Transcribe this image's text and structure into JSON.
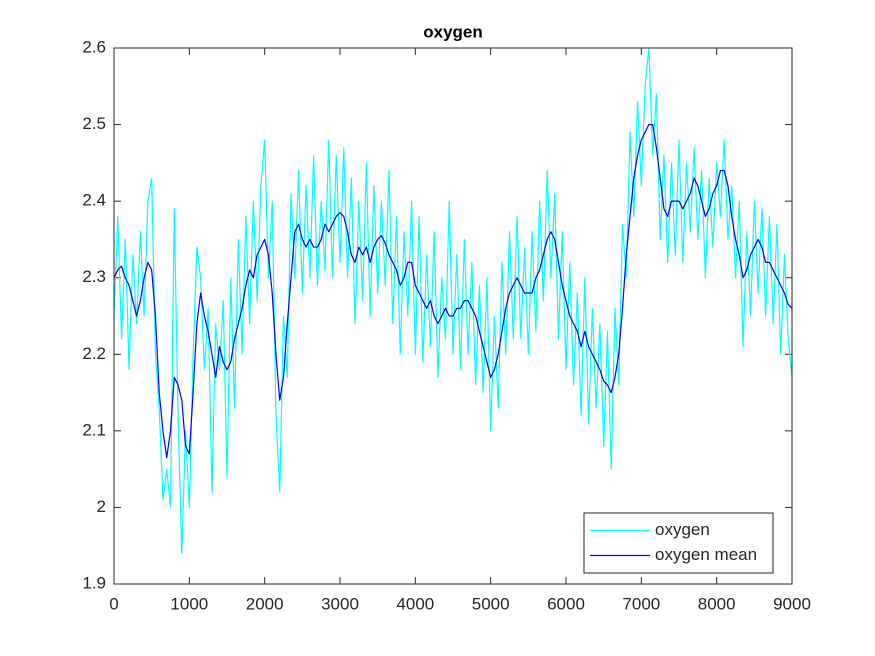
{
  "chart_data": {
    "type": "line",
    "title": "oxygen",
    "x": [
      0,
      50,
      100,
      150,
      200,
      250,
      300,
      350,
      400,
      450,
      500,
      550,
      600,
      650,
      700,
      750,
      800,
      850,
      900,
      950,
      1000,
      1050,
      1100,
      1150,
      1200,
      1250,
      1300,
      1350,
      1400,
      1450,
      1500,
      1550,
      1600,
      1650,
      1700,
      1750,
      1800,
      1850,
      1900,
      1950,
      2000,
      2050,
      2100,
      2150,
      2200,
      2250,
      2300,
      2350,
      2400,
      2450,
      2500,
      2550,
      2600,
      2650,
      2700,
      2750,
      2800,
      2850,
      2900,
      2950,
      3000,
      3050,
      3100,
      3150,
      3200,
      3250,
      3300,
      3350,
      3400,
      3450,
      3500,
      3550,
      3600,
      3650,
      3700,
      3750,
      3800,
      3850,
      3900,
      3950,
      4000,
      4050,
      4100,
      4150,
      4200,
      4250,
      4300,
      4350,
      4400,
      4450,
      4500,
      4550,
      4600,
      4650,
      4700,
      4750,
      4800,
      4850,
      4900,
      4950,
      5000,
      5050,
      5100,
      5150,
      5200,
      5250,
      5300,
      5350,
      5400,
      5450,
      5500,
      5550,
      5600,
      5650,
      5700,
      5750,
      5800,
      5850,
      5900,
      5950,
      6000,
      6050,
      6100,
      6150,
      6200,
      6250,
      6300,
      6350,
      6400,
      6450,
      6500,
      6550,
      6600,
      6650,
      6700,
      6750,
      6800,
      6850,
      6900,
      6950,
      7000,
      7050,
      7100,
      7150,
      7200,
      7250,
      7300,
      7350,
      7400,
      7450,
      7500,
      7550,
      7600,
      7650,
      7700,
      7750,
      7800,
      7850,
      7900,
      7950,
      8000,
      8050,
      8100,
      8150,
      8200,
      8250,
      8300,
      8350,
      8400,
      8450,
      8500,
      8550,
      8600,
      8650,
      8700,
      8750,
      8800,
      8850,
      8900,
      8950,
      9000
    ],
    "series": [
      {
        "name": "oxygen",
        "color": "#00ffff",
        "values": [
          2.25,
          2.38,
          2.22,
          2.35,
          2.18,
          2.33,
          2.24,
          2.36,
          2.25,
          2.4,
          2.43,
          2.2,
          2.13,
          2.01,
          2.05,
          2.0,
          2.39,
          2.12,
          1.94,
          2.1,
          2.0,
          2.2,
          2.34,
          2.3,
          2.18,
          2.26,
          2.02,
          2.24,
          2.18,
          2.27,
          2.04,
          2.3,
          2.13,
          2.35,
          2.2,
          2.38,
          2.24,
          2.4,
          2.27,
          2.42,
          2.48,
          2.3,
          2.4,
          2.12,
          2.02,
          2.25,
          2.17,
          2.41,
          2.3,
          2.44,
          2.28,
          2.42,
          2.3,
          2.46,
          2.29,
          2.4,
          2.31,
          2.48,
          2.3,
          2.46,
          2.32,
          2.47,
          2.3,
          2.43,
          2.24,
          2.4,
          2.27,
          2.45,
          2.25,
          2.42,
          2.28,
          2.4,
          2.29,
          2.44,
          2.24,
          2.38,
          2.2,
          2.36,
          2.25,
          2.4,
          2.2,
          2.38,
          2.19,
          2.33,
          2.21,
          2.36,
          2.17,
          2.3,
          2.22,
          2.4,
          2.2,
          2.33,
          2.18,
          2.35,
          2.2,
          2.32,
          2.16,
          2.29,
          2.15,
          2.3,
          2.1,
          2.25,
          2.13,
          2.32,
          2.2,
          2.36,
          2.22,
          2.38,
          2.22,
          2.34,
          2.2,
          2.36,
          2.23,
          2.4,
          2.27,
          2.44,
          2.3,
          2.41,
          2.22,
          2.36,
          2.18,
          2.32,
          2.16,
          2.28,
          2.12,
          2.3,
          2.11,
          2.26,
          2.13,
          2.24,
          2.08,
          2.23,
          2.05,
          2.26,
          2.16,
          2.37,
          2.3,
          2.49,
          2.38,
          2.53,
          2.42,
          2.55,
          2.6,
          2.46,
          2.54,
          2.35,
          2.46,
          2.32,
          2.45,
          2.33,
          2.48,
          2.32,
          2.45,
          2.36,
          2.47,
          2.35,
          2.44,
          2.3,
          2.43,
          2.34,
          2.45,
          2.38,
          2.48,
          2.35,
          2.42,
          2.3,
          2.4,
          2.21,
          2.36,
          2.25,
          2.4,
          2.28,
          2.39,
          2.25,
          2.38,
          2.24,
          2.37,
          2.2,
          2.33,
          2.22,
          2.17
        ]
      },
      {
        "name": "oxygen mean",
        "color": "#0000ff",
        "values": [
          2.3,
          2.31,
          2.315,
          2.3,
          2.29,
          2.27,
          2.25,
          2.27,
          2.3,
          2.32,
          2.31,
          2.25,
          2.15,
          2.1,
          2.065,
          2.1,
          2.17,
          2.16,
          2.14,
          2.08,
          2.07,
          2.15,
          2.24,
          2.28,
          2.25,
          2.23,
          2.2,
          2.17,
          2.21,
          2.19,
          2.18,
          2.19,
          2.22,
          2.24,
          2.26,
          2.29,
          2.31,
          2.3,
          2.33,
          2.34,
          2.35,
          2.33,
          2.28,
          2.2,
          2.14,
          2.17,
          2.24,
          2.3,
          2.36,
          2.37,
          2.35,
          2.34,
          2.35,
          2.34,
          2.34,
          2.35,
          2.37,
          2.36,
          2.37,
          2.38,
          2.385,
          2.38,
          2.36,
          2.33,
          2.32,
          2.34,
          2.33,
          2.34,
          2.32,
          2.34,
          2.35,
          2.355,
          2.345,
          2.33,
          2.32,
          2.31,
          2.29,
          2.3,
          2.32,
          2.32,
          2.29,
          2.28,
          2.27,
          2.26,
          2.27,
          2.25,
          2.24,
          2.25,
          2.26,
          2.25,
          2.25,
          2.26,
          2.26,
          2.27,
          2.27,
          2.26,
          2.25,
          2.23,
          2.21,
          2.19,
          2.17,
          2.18,
          2.2,
          2.23,
          2.26,
          2.28,
          2.29,
          2.3,
          2.29,
          2.28,
          2.28,
          2.28,
          2.3,
          2.31,
          2.33,
          2.35,
          2.36,
          2.35,
          2.32,
          2.29,
          2.27,
          2.25,
          2.24,
          2.23,
          2.21,
          2.23,
          2.21,
          2.2,
          2.19,
          2.18,
          2.165,
          2.16,
          2.15,
          2.17,
          2.2,
          2.26,
          2.33,
          2.38,
          2.43,
          2.46,
          2.48,
          2.49,
          2.5,
          2.5,
          2.47,
          2.43,
          2.39,
          2.38,
          2.4,
          2.4,
          2.4,
          2.39,
          2.4,
          2.41,
          2.43,
          2.42,
          2.4,
          2.38,
          2.39,
          2.41,
          2.42,
          2.44,
          2.44,
          2.42,
          2.38,
          2.35,
          2.33,
          2.3,
          2.31,
          2.33,
          2.34,
          2.35,
          2.34,
          2.32,
          2.32,
          2.31,
          2.3,
          2.29,
          2.28,
          2.265,
          2.26
        ]
      }
    ],
    "xlim": [
      0,
      9000
    ],
    "xticks": [
      0,
      1000,
      2000,
      3000,
      4000,
      5000,
      6000,
      7000,
      8000,
      9000
    ],
    "ylim": [
      1.9,
      2.6
    ],
    "yticks": [
      1.9,
      2,
      2.1,
      2.2,
      2.3,
      2.4,
      2.5,
      2.6
    ],
    "legend": "southeast"
  }
}
